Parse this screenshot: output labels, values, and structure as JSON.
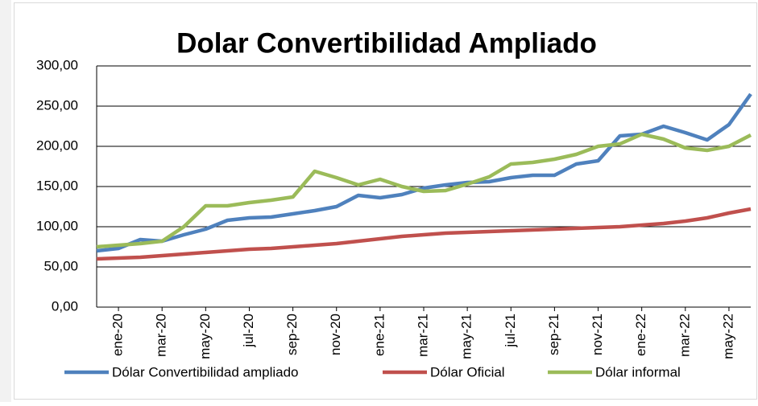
{
  "chart_data": {
    "type": "line",
    "title": "Dolar Convertibilidad Ampliado",
    "categories": [
      null,
      "ene-20",
      null,
      "mar-20",
      null,
      "may-20",
      null,
      "jul-20",
      null,
      "sep-20",
      null,
      "nov-20",
      null,
      "ene-21",
      null,
      "mar-21",
      null,
      "may-21",
      null,
      "jul-21",
      null,
      "sep-21",
      null,
      "nov-21",
      null,
      "ene-22",
      null,
      "mar-22",
      null,
      "may-22",
      null
    ],
    "series": [
      {
        "name": "Dólar Convertibilidad ampliado",
        "color": "#4f81bd",
        "values": [
          70,
          73,
          84,
          82,
          90,
          97,
          108,
          111,
          112,
          116,
          120,
          125,
          139,
          136,
          140,
          148,
          152,
          155,
          156,
          161,
          164,
          164,
          178,
          182,
          213,
          215,
          225,
          217,
          208,
          227,
          265
        ]
      },
      {
        "name": "Dólar Oficial",
        "color": "#c0504d",
        "values": [
          60,
          61,
          62,
          64,
          66,
          68,
          70,
          72,
          73,
          75,
          77,
          79,
          82,
          85,
          88,
          90,
          92,
          93,
          94,
          95,
          96,
          97,
          98,
          99,
          100,
          102,
          104,
          107,
          111,
          117,
          122
        ]
      },
      {
        "name": "Dólar informal",
        "color": "#9bbb59",
        "values": [
          75,
          77,
          79,
          82,
          100,
          126,
          126,
          130,
          133,
          137,
          169,
          161,
          152,
          159,
          150,
          144,
          145,
          153,
          162,
          178,
          180,
          184,
          190,
          200,
          203,
          215,
          209,
          198,
          195,
          200,
          214
        ]
      }
    ],
    "ylim": [
      0,
      300
    ],
    "yticks": [
      {
        "value": 0,
        "label": "0,00"
      },
      {
        "value": 50,
        "label": "50,00"
      },
      {
        "value": 100,
        "label": "100,00"
      },
      {
        "value": 150,
        "label": "150,00"
      },
      {
        "value": 200,
        "label": "200,00"
      },
      {
        "value": 250,
        "label": "250,00"
      },
      {
        "value": 300,
        "label": "300,00"
      }
    ],
    "grid": true,
    "legend": "bottom"
  }
}
